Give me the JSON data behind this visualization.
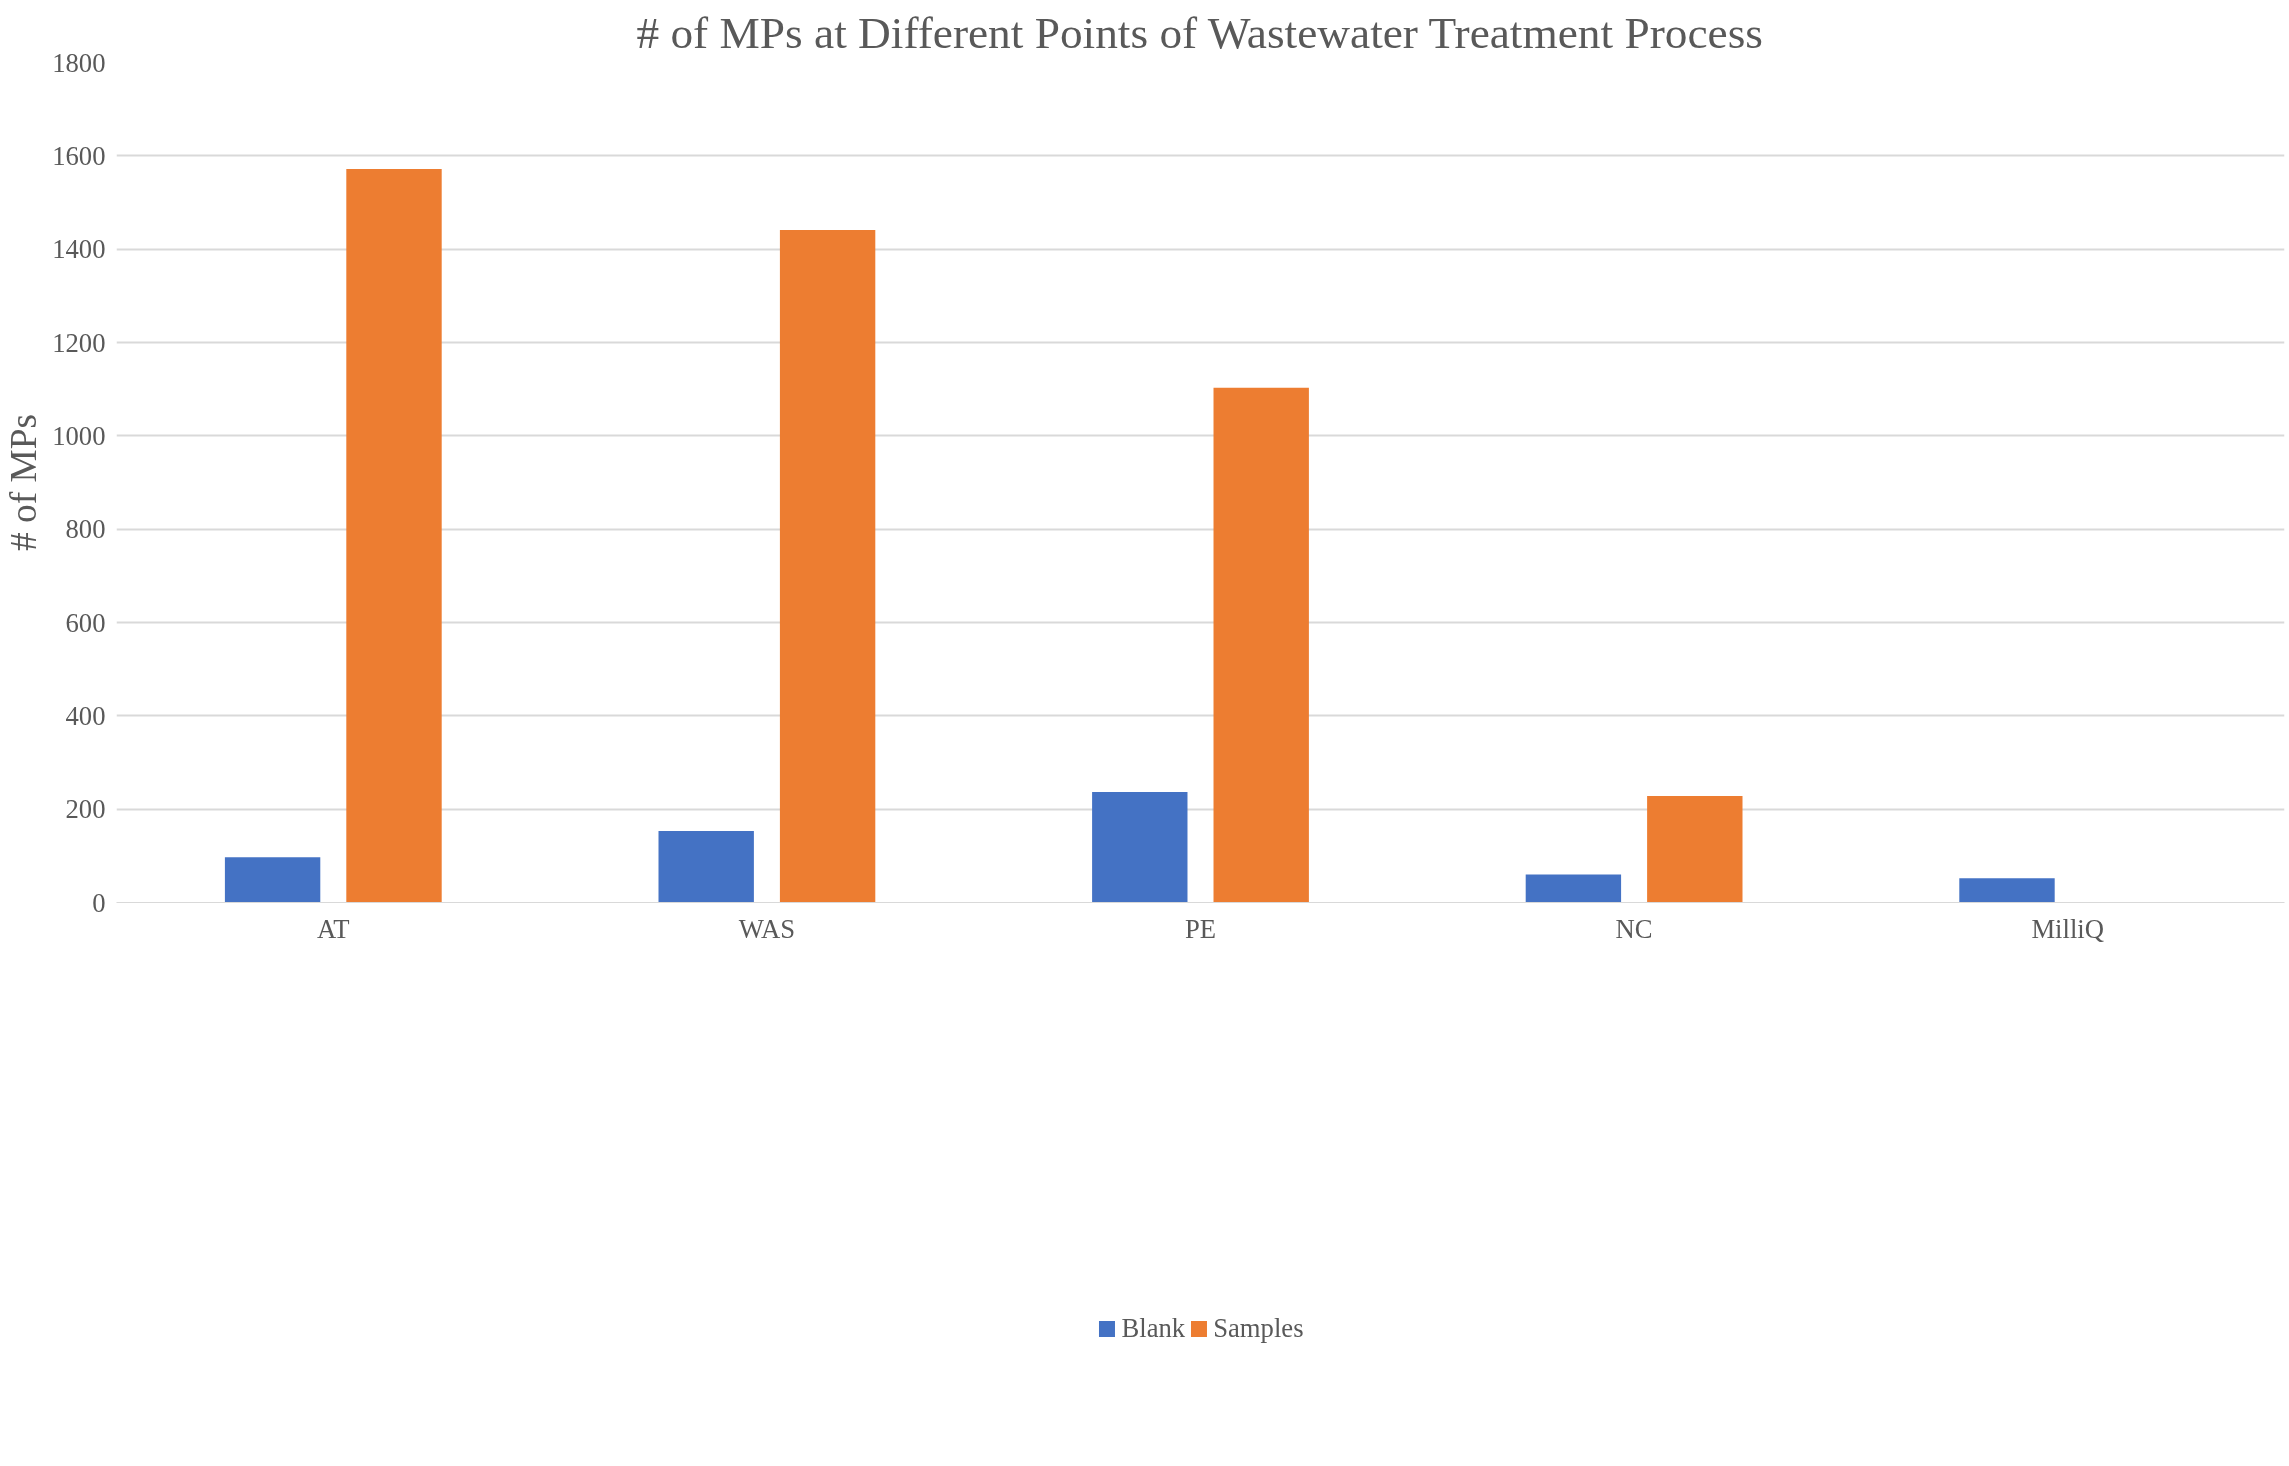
{
  "chart_data": {
    "type": "bar",
    "title": "# of MPs at Different Points of Wastewater Treatment Process",
    "ylabel": "# of MPs",
    "categories": [
      "AT",
      "WAS",
      "PE",
      "NC",
      "MilliQ"
    ],
    "series": [
      {
        "name": "Blank",
        "color": "#4472c4",
        "values": [
          97,
          153,
          237,
          60,
          52
        ]
      },
      {
        "name": "Samples",
        "color": "#ed7d31",
        "values": [
          1572,
          1441,
          1103,
          228,
          null
        ]
      }
    ],
    "ylim": [
      0,
      1800
    ],
    "yticks": [
      0,
      200,
      400,
      600,
      800,
      1000,
      1200,
      1400,
      1600,
      1800
    ],
    "grid": "y",
    "legend": "bottom"
  }
}
